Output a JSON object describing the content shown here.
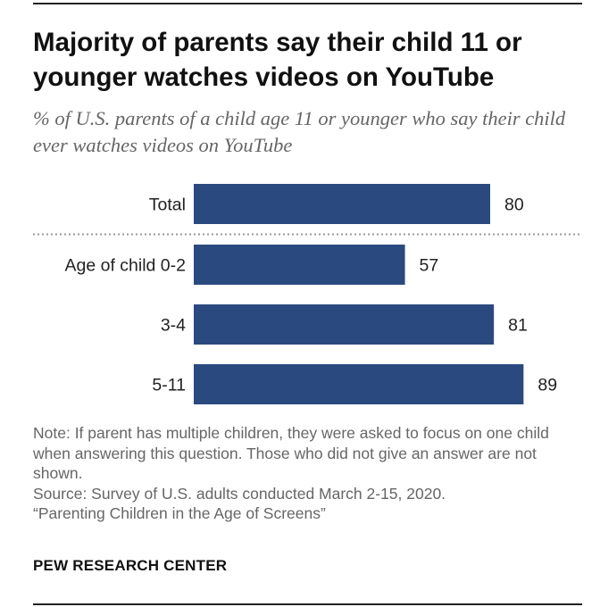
{
  "title": "Majority of parents say their child 11 or younger watches videos on YouTube",
  "subtitle": "% of U.S. parents of a child age 11 or younger who say their child ever watches videos on YouTube",
  "note": "Note: If parent has multiple children, they were asked to focus on one child when answering this question. Those who did not give an answer are not shown.",
  "source": "Source: Survey of U.S. adults conducted March 2-15, 2020.",
  "report": "“Parenting Children in the Age of Screens”",
  "brand": "PEW RESEARCH CENTER",
  "colors": {
    "bar": "#2a4a7f",
    "separator": "#999999"
  },
  "chart_data": {
    "type": "bar",
    "orientation": "horizontal",
    "categories": [
      "Total",
      "Age of child 0-2",
      "3-4",
      "5-11"
    ],
    "values": [
      80,
      57,
      81,
      89
    ],
    "xlim": [
      0,
      100
    ],
    "separator_after_index": 0,
    "title": "",
    "xlabel": "",
    "ylabel": ""
  }
}
